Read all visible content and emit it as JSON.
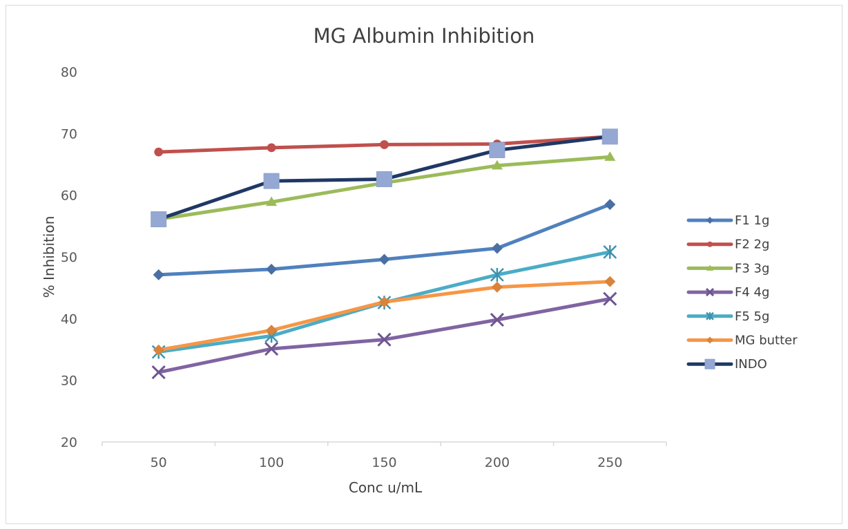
{
  "chart_data": {
    "type": "line",
    "title": "MG Albumin Inhibition",
    "xlabel": "Conc u/mL",
    "ylabel": "% Inhibition",
    "categories": [
      "50",
      "100",
      "150",
      "200",
      "250"
    ],
    "ylim": [
      20,
      80
    ],
    "yticks": [
      20,
      30,
      40,
      50,
      60,
      70,
      80
    ],
    "grid": false,
    "legend_position": "right",
    "series": [
      {
        "name": "F1 1g",
        "color": "#4f81bd",
        "marker": "diamond",
        "marker_color": "#4a6fa5",
        "values": [
          47.1,
          48.0,
          49.6,
          51.4,
          58.5
        ]
      },
      {
        "name": "F2 2g",
        "color": "#c0504d",
        "marker": "circle",
        "marker_color": "#c0504d",
        "values": [
          67.0,
          67.7,
          68.2,
          68.3,
          69.5
        ]
      },
      {
        "name": "F3 3g",
        "color": "#9bbb59",
        "marker": "triangle",
        "marker_color": "#9bbb59",
        "values": [
          56.1,
          58.9,
          62.0,
          64.8,
          66.2
        ]
      },
      {
        "name": "F4 4g",
        "color": "#8064a2",
        "marker": "x",
        "marker_color": "#6f5592",
        "values": [
          31.3,
          35.1,
          36.6,
          39.8,
          43.2
        ]
      },
      {
        "name": "F5 5g",
        "color": "#4bacc6",
        "marker": "star",
        "marker_color": "#3d92ad",
        "values": [
          34.6,
          37.2,
          42.6,
          47.1,
          50.8
        ]
      },
      {
        "name": "MG butter",
        "color": "#f79646",
        "marker": "diamond",
        "marker_color": "#d9843a",
        "values": [
          34.9,
          38.1,
          42.7,
          45.1,
          46.0
        ]
      },
      {
        "name": "INDO",
        "color": "#1f3864",
        "marker": "square",
        "marker_color": "#95a8d3",
        "values": [
          56.1,
          62.3,
          62.6,
          67.3,
          69.5
        ]
      }
    ]
  }
}
